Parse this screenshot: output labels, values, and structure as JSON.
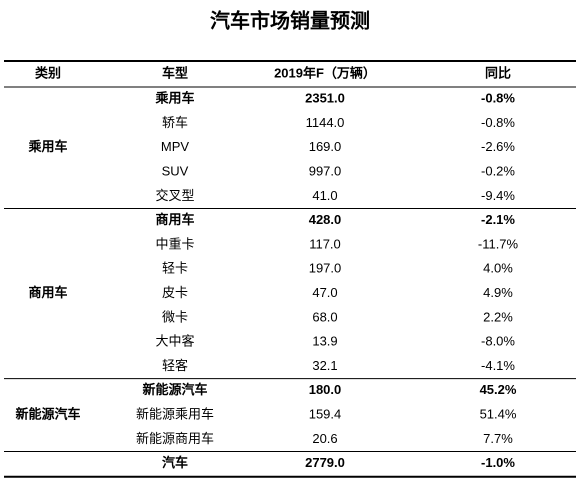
{
  "title": "汽车市场销量预测",
  "table": {
    "header": [
      "类别",
      "车型",
      "2019年F（万辆）",
      "同比"
    ],
    "groups": [
      {
        "category": "乘用车",
        "rows": [
          [
            "乘用车",
            "2351.0",
            "-0.8%"
          ],
          [
            "轿车",
            "1144.0",
            "-0.8%"
          ],
          [
            "MPV",
            "169.0",
            "-2.6%"
          ],
          [
            "SUV",
            "997.0",
            "-0.2%"
          ],
          [
            "交叉型",
            "41.0",
            "-9.4%"
          ]
        ]
      },
      {
        "category": "商用车",
        "rows": [
          [
            "商用车",
            "428.0",
            "-2.1%"
          ],
          [
            "中重卡",
            "117.0",
            "-11.7%"
          ],
          [
            "轻卡",
            "197.0",
            "4.0%"
          ],
          [
            "皮卡",
            "47.0",
            "4.9%"
          ],
          [
            "微卡",
            "68.0",
            "2.2%"
          ],
          [
            "大中客",
            "13.9",
            "-8.0%"
          ],
          [
            "轻客",
            "32.1",
            "-4.1%"
          ]
        ]
      },
      {
        "category": "新能源汽车",
        "rows": [
          [
            "新能源汽车",
            "180.0",
            "45.2%"
          ],
          [
            "新能源乘用车",
            "159.4",
            "51.4%"
          ],
          [
            "新能源商用车",
            "20.6",
            "7.7%"
          ]
        ]
      }
    ],
    "total": [
      "汽车",
      "2779.0",
      "-1.0%"
    ]
  }
}
